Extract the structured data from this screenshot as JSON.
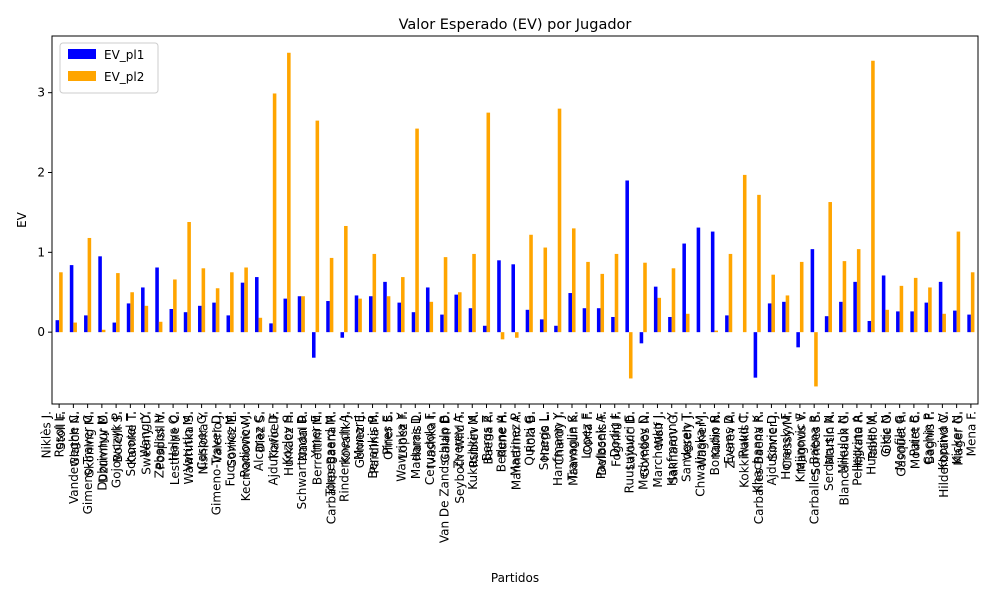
{
  "chart_data": {
    "type": "bar",
    "title": "Valor Esperado (EV) por Jugador",
    "xlabel": "Partidos",
    "ylabel": "EV",
    "categories": [
      [
        "Niklès J.",
        "Rosol L."
      ],
      [
        "Stoll F.",
        "Vandeweghe C."
      ],
      [
        "Glatch N.",
        "Gimeno-Traver C."
      ],
      [
        "Skoning M.",
        "Dubrivnyy M."
      ],
      [
        "Dzumhur D.",
        "Gojowczyk P."
      ],
      [
        "Bolelli S.",
        "Schoorel T."
      ],
      [
        "Kamke T.",
        "Wang Y."
      ],
      [
        "Sweeny D.",
        "Zeballos H."
      ],
      [
        "Pospisil V.",
        "Halys Q."
      ],
      [
        "Lestienne C.",
        "Vatutin M."
      ],
      [
        "Wawrinka S.",
        "Casper G."
      ],
      [
        "Nishioka Y.",
        "Gimeno-Traver D."
      ],
      [
        "Valerio J.",
        "Fucsovics M."
      ],
      [
        "Gomez E.",
        "Rodionov J."
      ],
      [
        "Kecmanovic M.",
        "Alcaraz C."
      ],
      [
        "Diez S.",
        "Ajdukovic D."
      ],
      [
        "Tiafoe F.",
        "Kozlov S."
      ],
      [
        "Hurkacz H.",
        "Schwartzman D."
      ],
      [
        "Nadal R.",
        "Ymer E."
      ],
      [
        "Berrettini M.",
        "Torpegaard M."
      ],
      [
        "Carballes Baena R.",
        "Rinderknech A."
      ],
      [
        "Kovalik J.",
        "Munar J."
      ],
      [
        "Gomez E.",
        "Berankis R."
      ],
      [
        "Pardina M.",
        "Pires E."
      ],
      [
        "Ofner S.",
        "Wawrinka Y."
      ],
      [
        "Lopez F.",
        "Madaras D."
      ],
      [
        "Harris L.",
        "Cerundolo F."
      ],
      [
        "Ivashka I.",
        "Van De Zandschulp B."
      ],
      [
        "Galan D.",
        "Zverev A."
      ],
      [
        "Seyboth Wild T.",
        "Kukushkin M."
      ],
      [
        "Rublev A.",
        "Bergs Z."
      ],
      [
        "Baena R.",
        "Bedene A."
      ],
      [
        "Rune H.",
        "Martinez P."
      ],
      [
        "Mannarino A.",
        "Quinzi G."
      ],
      [
        "Rola B.",
        "Sonego L."
      ],
      [
        "Harris L.",
        "Hanfmann Y."
      ],
      [
        "Chardy J.",
        "Travaglia S."
      ],
      [
        "Maamoun K.",
        "Lopez F."
      ],
      [
        "Coria F.",
        "Pavlasek A."
      ],
      [
        "Delbonis F.",
        "Dodig I."
      ],
      [
        "Fognini F.",
        "Ruusuvuori E."
      ],
      [
        "Lajovic D.",
        "Medvedev D."
      ],
      [
        "Gombos N.",
        "Marchenko I."
      ],
      [
        "Wolf J.",
        "Hanfmann Y."
      ],
      [
        "Sakharov G.",
        "Sandgren T."
      ],
      [
        "Vesely J.",
        "Chwalinska M."
      ],
      [
        "Wagner J.",
        "Bonadio R."
      ],
      [
        "Kuhn N.",
        "Evans D."
      ],
      [
        "Zverev A.",
        "Ruud C."
      ],
      [
        "Kokkinakis T.",
        "Khachanov K."
      ],
      [
        "Carballes Baena R.",
        "Ajdukovic D."
      ],
      [
        "Sinner J.",
        "Horansky F."
      ],
      [
        "Cressy M.",
        "Krajinovic F."
      ],
      [
        "Magnus V.",
        "Carballes Baena R."
      ],
      [
        "Sorribes S.",
        "Serdarusic N."
      ],
      [
        "Martin A.",
        "Mikuloh N."
      ],
      [
        "Blancaneaux G.",
        "Pellegrino A."
      ],
      [
        "Hijikata R.",
        "Huesler M."
      ],
      [
        "Tabilo A.",
        "Gikic N."
      ],
      [
        "Otte O.",
        "Monfils G."
      ],
      [
        "Gasquet R.",
        "Paire B."
      ],
      [
        "Moutet C.",
        "Cachin P."
      ],
      [
        "Bagnis F.",
        "Kopriva V."
      ],
      [
        "Hilderbrand C.",
        "Kicker N."
      ],
      [
        "Mager G.",
        "Mena F."
      ]
    ],
    "series": [
      {
        "name": "EV_pl1",
        "color": "#0000ff",
        "values": [
          0.15,
          0.84,
          0.21,
          0.95,
          0.12,
          0.36,
          0.56,
          0.81,
          0.29,
          0.25,
          0.33,
          0.37,
          0.21,
          0.62,
          0.69,
          0.11,
          0.42,
          0.45,
          -0.32,
          0.39,
          -0.07,
          0.46,
          0.45,
          0.63,
          0.37,
          0.25,
          0.56,
          0.22,
          0.47,
          0.3,
          0.08,
          0.9,
          0.85,
          0.28,
          0.16,
          0.08,
          0.49,
          0.3,
          0.3,
          0.19,
          1.9,
          -0.14,
          0.57,
          0.19,
          1.11,
          1.31,
          1.26,
          0.21,
          0.0,
          -0.57,
          0.36,
          0.38,
          -0.19,
          1.04,
          0.2,
          0.38,
          0.63,
          0.14,
          0.71,
          0.26,
          0.26,
          0.37,
          0.63,
          0.27,
          0.22
        ]
      },
      {
        "name": "EV_pl2",
        "color": "#ffa500",
        "values": [
          0.75,
          0.12,
          1.18,
          0.03,
          0.74,
          0.5,
          0.33,
          0.13,
          0.66,
          1.38,
          0.8,
          0.55,
          0.75,
          0.81,
          0.18,
          2.99,
          3.5,
          0.45,
          2.65,
          0.93,
          1.33,
          0.42,
          0.98,
          0.45,
          0.69,
          2.55,
          0.38,
          0.94,
          0.5,
          0.98,
          2.75,
          -0.09,
          -0.07,
          1.22,
          1.06,
          2.8,
          1.3,
          0.88,
          0.73,
          0.98,
          -0.58,
          0.87,
          0.43,
          0.8,
          0.23,
          0.0,
          0.02,
          0.98,
          1.97,
          1.72,
          0.72,
          0.46,
          0.88,
          -0.68,
          1.63,
          0.89,
          1.04,
          3.4,
          0.28,
          0.58,
          0.68,
          0.56,
          0.23,
          1.26,
          0.75
        ]
      }
    ],
    "ylim": [
      -0.9,
      3.71
    ],
    "yticks": [
      0,
      1,
      2,
      3
    ],
    "legend": "upper left"
  }
}
